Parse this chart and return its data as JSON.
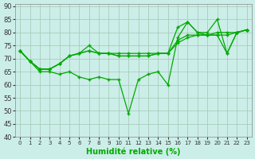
{
  "xlabel": "Humidité relative (%)",
  "background_color": "#cceee8",
  "grid_color": "#aaccbb",
  "line_color": "#00aa00",
  "marker": "+",
  "x": [
    0,
    1,
    2,
    3,
    4,
    5,
    6,
    7,
    8,
    9,
    10,
    11,
    12,
    13,
    14,
    15,
    16,
    17,
    18,
    19,
    20,
    21,
    22,
    23
  ],
  "ylim": [
    40,
    91
  ],
  "yticks": [
    40,
    45,
    50,
    55,
    60,
    65,
    70,
    75,
    80,
    85,
    90
  ],
  "series": [
    [
      73,
      69,
      66,
      66,
      68,
      71,
      72,
      73,
      72,
      72,
      71,
      71,
      71,
      71,
      72,
      72,
      76,
      78,
      79,
      79,
      79,
      79,
      80,
      81
    ],
    [
      73,
      69,
      66,
      66,
      68,
      71,
      72,
      73,
      72,
      72,
      71,
      71,
      71,
      71,
      72,
      72,
      77,
      79,
      79,
      79,
      80,
      80,
      80,
      81
    ],
    [
      73,
      69,
      66,
      66,
      68,
      71,
      72,
      75,
      72,
      72,
      72,
      72,
      72,
      72,
      72,
      72,
      82,
      84,
      80,
      80,
      85,
      72,
      80,
      81
    ],
    [
      73,
      69,
      65,
      65,
      64,
      65,
      63,
      62,
      63,
      62,
      62,
      49,
      62,
      64,
      65,
      60,
      78,
      84,
      80,
      79,
      79,
      72,
      80,
      81
    ]
  ]
}
